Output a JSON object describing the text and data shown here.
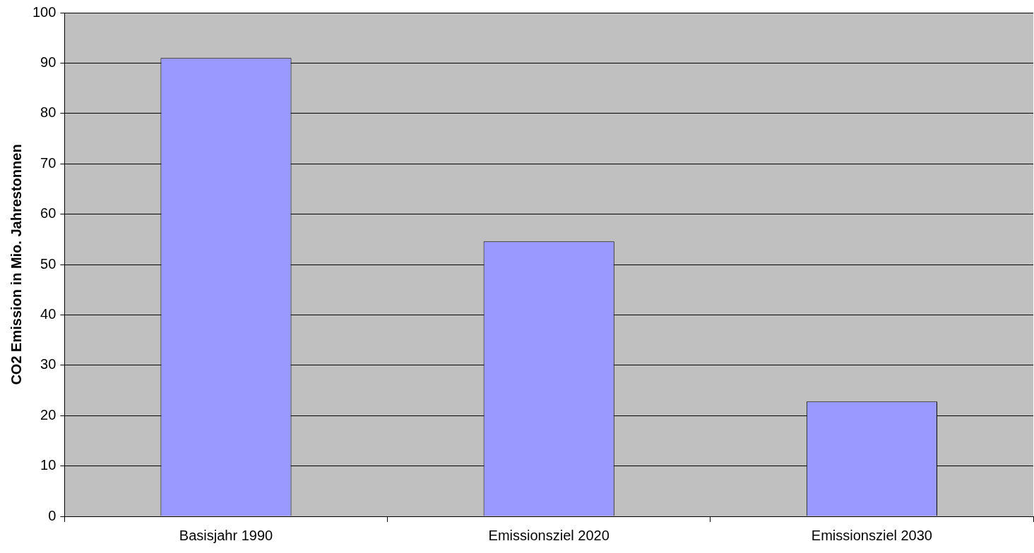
{
  "chart_data": {
    "type": "bar",
    "ylabel": "CO2 Emission in Mio. Jahrestonnen",
    "categories": [
      "Basisjahr 1990",
      "Emissionsziel 2020",
      "Emissionsziel 2030"
    ],
    "values": [
      91,
      54.6,
      22.8
    ],
    "color": "#9999ff",
    "ylim": [
      0,
      100
    ],
    "yticks": [
      0,
      10,
      20,
      30,
      40,
      50,
      60,
      70,
      80,
      90,
      100
    ],
    "grid": "y",
    "legend": false
  }
}
